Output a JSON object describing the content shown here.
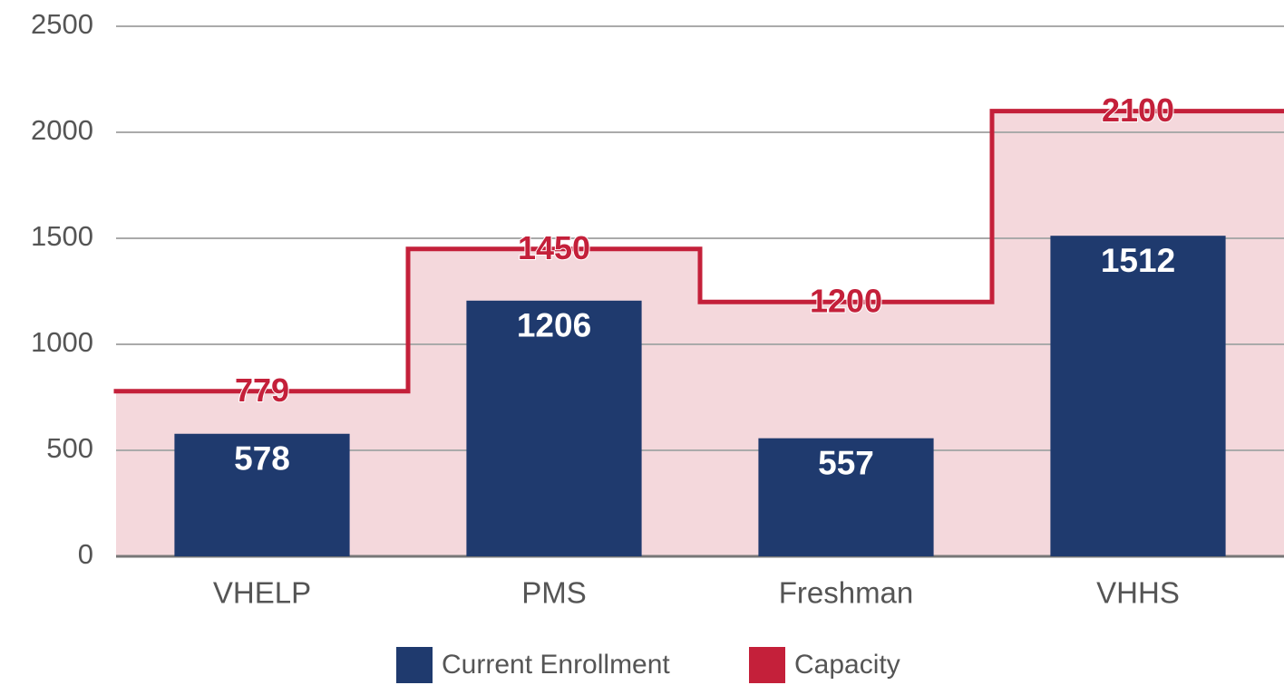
{
  "chart_data": {
    "type": "bar",
    "categories": [
      "VHELP",
      "PMS",
      "Freshman",
      "VHHS"
    ],
    "series": [
      {
        "name": "Current Enrollment",
        "color": "#1f3a6e",
        "values": [
          578,
          1206,
          557,
          1512
        ]
      },
      {
        "name": "Capacity",
        "color": "#c4203a",
        "style": "step-area",
        "area_color": "#f4d8dc",
        "values": [
          779,
          1450,
          1200,
          2100
        ]
      }
    ],
    "ylim": [
      0,
      2500
    ],
    "yticks": [
      0,
      500,
      1000,
      1500,
      2000,
      2500
    ],
    "grid": true,
    "legend": "bottom"
  }
}
